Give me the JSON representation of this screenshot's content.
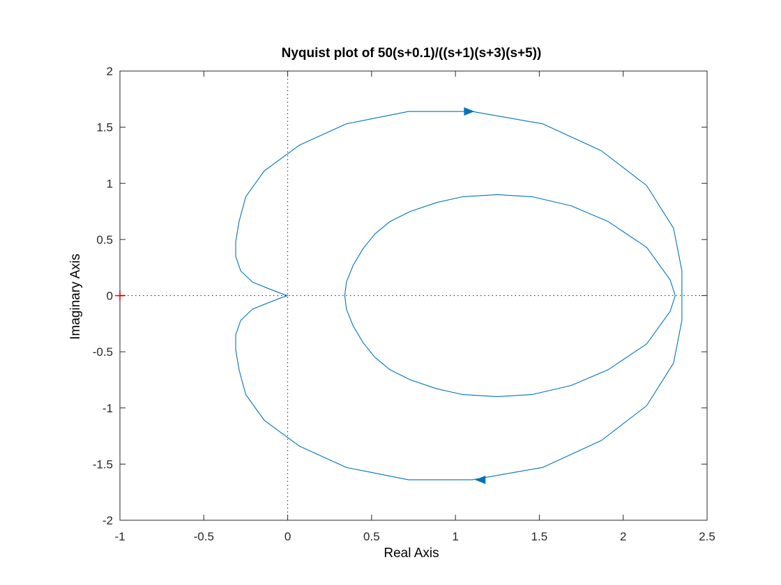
{
  "chart_data": {
    "type": "line",
    "title": "Nyquist plot of 50(s+0.1)/((s+1)(s+3)(s+5))",
    "xlabel": "Real Axis",
    "ylabel": "Imaginary Axis",
    "xlim": [
      -1,
      2.5
    ],
    "ylim": [
      -2,
      2
    ],
    "xticks": [
      -1,
      -0.5,
      0,
      0.5,
      1,
      1.5,
      2,
      2.5
    ],
    "xtick_labels": [
      "-1",
      "-0.5",
      "0",
      "0.5",
      "1",
      "1.5",
      "2",
      "2.5"
    ],
    "yticks": [
      -2,
      -1.5,
      -1,
      -0.5,
      0,
      0.5,
      1,
      1.5,
      2
    ],
    "ytick_labels": [
      "-2",
      "-1.5",
      "-1",
      "-0.5",
      "0",
      "0.5",
      "1",
      "1.5",
      "2"
    ],
    "grid": false,
    "line_color": "#0072BD",
    "critical_point": {
      "x": -1,
      "y": 0,
      "color": "#FF0000"
    },
    "series": [
      {
        "x": [
          0.0,
          -0.04,
          -0.11,
          -0.21,
          -0.28,
          -0.31,
          -0.31,
          -0.29,
          -0.25,
          -0.14,
          0.07,
          0.35,
          0.72,
          1.1,
          1.52,
          1.87,
          2.14,
          2.3,
          2.35,
          2.35,
          2.3,
          2.14,
          1.87,
          1.52,
          1.1,
          0.72,
          0.35,
          0.07,
          -0.14,
          -0.25,
          -0.29,
          -0.31,
          -0.31,
          -0.28,
          -0.21,
          -0.11,
          -0.04,
          0.0
        ],
        "y": [
          0.0,
          0.02,
          0.06,
          0.12,
          0.22,
          0.35,
          0.48,
          0.66,
          0.88,
          1.11,
          1.34,
          1.53,
          1.64,
          1.64,
          1.53,
          1.29,
          0.98,
          0.6,
          0.22,
          -0.22,
          -0.6,
          -0.98,
          -1.29,
          -1.53,
          -1.64,
          -1.64,
          -1.53,
          -1.34,
          -1.11,
          -0.88,
          -0.66,
          -0.48,
          -0.35,
          -0.22,
          -0.12,
          -0.06,
          -0.02,
          0.0
        ]
      },
      {
        "x": [
          2.31,
          2.28,
          2.14,
          1.91,
          1.69,
          1.46,
          1.25,
          1.04,
          0.89,
          0.73,
          0.61,
          0.52,
          0.45,
          0.39,
          0.35,
          0.34,
          0.35,
          0.39,
          0.45,
          0.52,
          0.61,
          0.73,
          0.89,
          1.04,
          1.25,
          1.46,
          1.69,
          1.91,
          2.14,
          2.28,
          2.31
        ],
        "y": [
          0.0,
          0.14,
          0.43,
          0.66,
          0.8,
          0.88,
          0.9,
          0.88,
          0.83,
          0.75,
          0.66,
          0.55,
          0.42,
          0.27,
          0.12,
          0.0,
          -0.12,
          -0.27,
          -0.42,
          -0.55,
          -0.66,
          -0.75,
          -0.83,
          -0.88,
          -0.9,
          -0.88,
          -0.8,
          -0.66,
          -0.43,
          -0.14,
          0.0
        ]
      }
    ],
    "arrows": [
      {
        "x": 1.08,
        "y": 1.64,
        "direction": "right"
      },
      {
        "x": 1.15,
        "y": -1.64,
        "direction": "left"
      }
    ]
  }
}
